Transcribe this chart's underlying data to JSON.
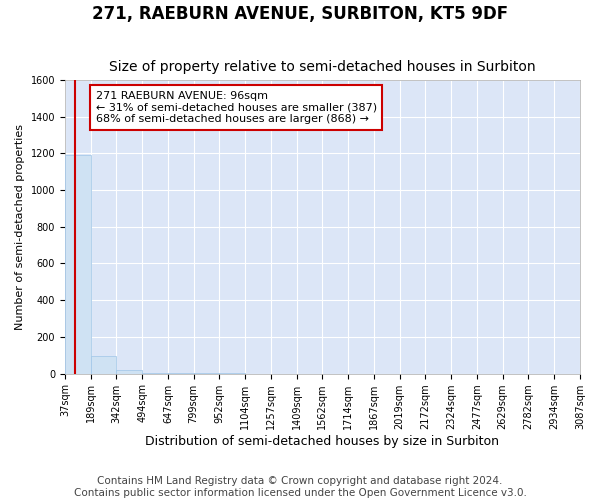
{
  "title": "271, RAEBURN AVENUE, SURBITON, KT5 9DF",
  "subtitle": "Size of property relative to semi-detached houses in Surbiton",
  "xlabel": "Distribution of semi-detached houses by size in Surbiton",
  "ylabel": "Number of semi-detached properties",
  "footnote1": "Contains HM Land Registry data © Crown copyright and database right 2024.",
  "footnote2": "Contains public sector information licensed under the Open Government Licence v3.0.",
  "bin_edges": [
    37,
    189,
    342,
    494,
    647,
    799,
    952,
    1104,
    1257,
    1409,
    1562,
    1714,
    1867,
    2019,
    2172,
    2324,
    2477,
    2629,
    2782,
    2934,
    3087
  ],
  "bar_heights": [
    1190,
    95,
    20,
    5,
    2,
    1,
    1,
    0,
    0,
    0,
    0,
    0,
    0,
    0,
    0,
    0,
    0,
    0,
    0,
    0
  ],
  "property_size": 96,
  "property_label": "271 RAEBURN AVENUE: 96sqm",
  "smaller_pct": 31,
  "smaller_count": 387,
  "larger_pct": 68,
  "larger_count": 868,
  "ylim": [
    0,
    1600
  ],
  "bar_color": "#cfe2f3",
  "bar_edge_color": "#9fc5e8",
  "vline_color": "#cc0000",
  "annotation_box_facecolor": "#ffffff",
  "annotation_box_edgecolor": "#cc0000",
  "plot_bg_color": "#dce6f7",
  "fig_bg_color": "#ffffff",
  "grid_color": "#ffffff",
  "title_fontsize": 12,
  "subtitle_fontsize": 10,
  "xlabel_fontsize": 9,
  "ylabel_fontsize": 8,
  "tick_fontsize": 7,
  "annotation_fontsize": 8,
  "footnote_fontsize": 7.5
}
